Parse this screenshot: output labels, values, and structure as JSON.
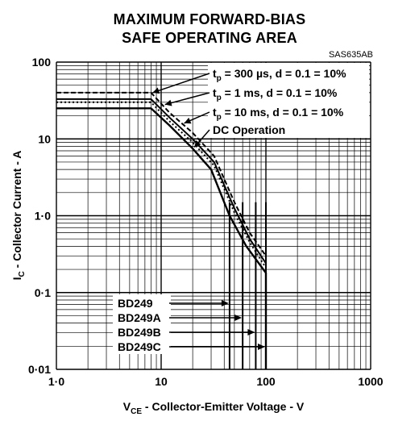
{
  "title_line1": "MAXIMUM FORWARD-BIAS",
  "title_line2": "SAFE OPERATING AREA",
  "figure_code": "SAS635AB",
  "chart_data": {
    "type": "line",
    "x_scale": "log",
    "y_scale": "log",
    "xlim": [
      1,
      1000
    ],
    "ylim": [
      0.01,
      100
    ],
    "grid": true,
    "x_ticks": [
      "1·0",
      "10",
      "100",
      "1000"
    ],
    "y_ticks": [
      "100",
      "10",
      "1·0",
      "0·1",
      "0·01"
    ],
    "xlabel": {
      "main": "V",
      "sub": "CE",
      "rest": " - Collector-Emitter Voltage - V"
    },
    "ylabel": {
      "main": "I",
      "sub": "C",
      "rest": " - Collector Current - A"
    },
    "series": [
      {
        "name": "t_p = 300 µs, d = 0.1 = 10%",
        "style": "dashed",
        "points": [
          [
            1,
            40
          ],
          [
            8,
            40
          ],
          [
            12,
            22
          ],
          [
            20,
            12
          ],
          [
            32,
            6
          ],
          [
            50,
            1.5
          ],
          [
            70,
            0.6
          ],
          [
            100,
            0.3
          ],
          [
            100,
            0.01
          ]
        ]
      },
      {
        "name": "t_p = 1 ms, d = 0.1 = 10%",
        "style": "solid",
        "points": [
          [
            1,
            33
          ],
          [
            8,
            33
          ],
          [
            12,
            19
          ],
          [
            20,
            10
          ],
          [
            32,
            5
          ],
          [
            50,
            1.25
          ],
          [
            70,
            0.5
          ],
          [
            100,
            0.24
          ],
          [
            100,
            0.01
          ]
        ]
      },
      {
        "name": "t_p = 10 ms, d = 0.1 = 10%",
        "style": "dotted",
        "points": [
          [
            1,
            30
          ],
          [
            8,
            30
          ],
          [
            12,
            17
          ],
          [
            20,
            9
          ],
          [
            32,
            4.5
          ],
          [
            50,
            1.1
          ],
          [
            70,
            0.45
          ],
          [
            100,
            0.21
          ],
          [
            100,
            0.01
          ]
        ]
      },
      {
        "name": "DC Operation",
        "style": "solid",
        "points": [
          [
            1,
            25
          ],
          [
            8,
            25
          ],
          [
            12,
            15
          ],
          [
            20,
            7.5
          ],
          [
            30,
            4
          ],
          [
            45,
            1
          ],
          [
            65,
            0.4
          ],
          [
            100,
            0.18
          ],
          [
            100,
            0.01
          ]
        ]
      }
    ],
    "legend_series": [
      {
        "prefix": "t",
        "sub": "p",
        "text": " = 300 µs, d = 0.1 = 10%"
      },
      {
        "prefix": "t",
        "sub": "p",
        "text": " =   1 ms, d = 0.1 = 10%"
      },
      {
        "prefix": "t",
        "sub": "p",
        "text": " =  10 ms, d = 0.1 = 10%"
      },
      {
        "prefix": "",
        "sub": "",
        "text": "DC Operation"
      }
    ],
    "device_limits": [
      {
        "name": "BD249",
        "vce_max": 45
      },
      {
        "name": "BD249A",
        "vce_max": 60
      },
      {
        "name": "BD249B",
        "vce_max": 80
      },
      {
        "name": "BD249C",
        "vce_max": 100
      }
    ]
  }
}
